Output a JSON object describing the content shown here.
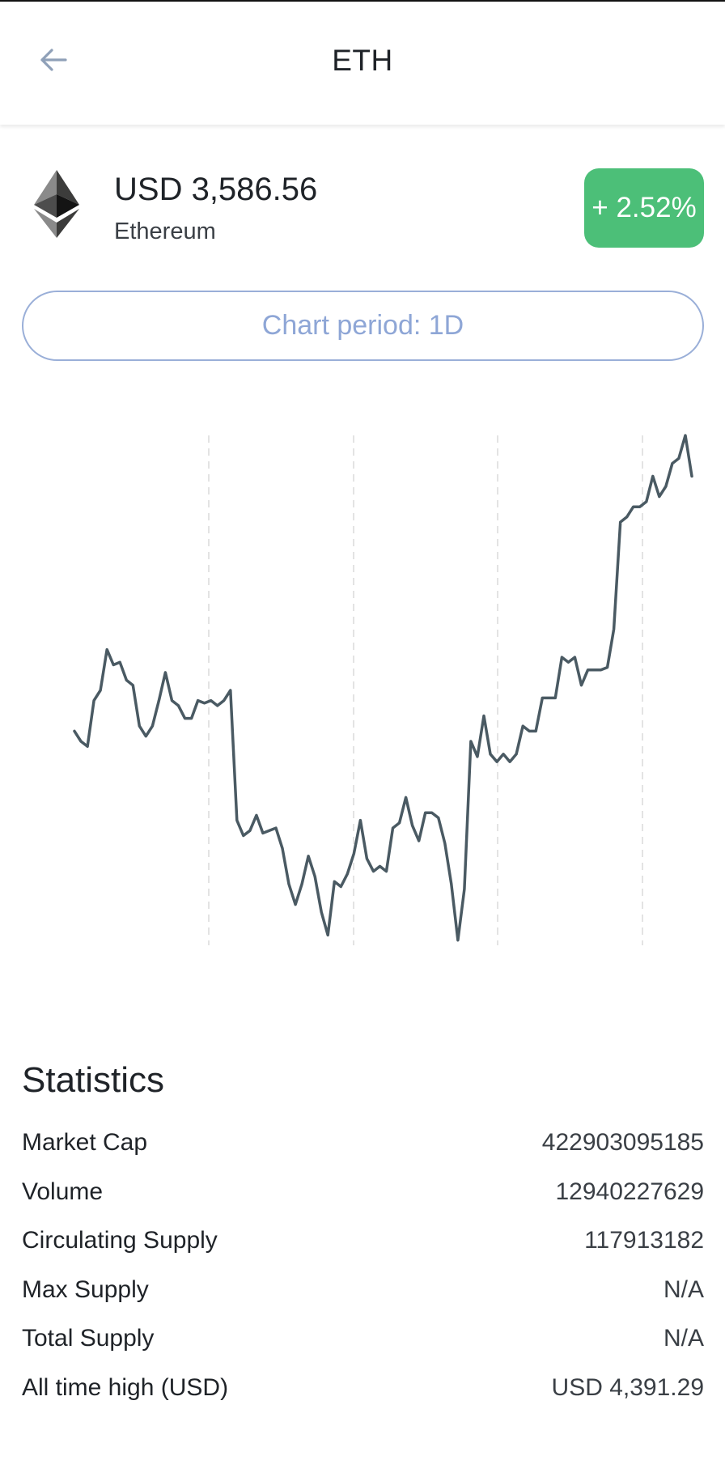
{
  "header": {
    "title": "ETH",
    "back_icon": "arrow-left-icon"
  },
  "coin": {
    "price": "USD 3,586.56",
    "name": "Ethereum",
    "change": "+ 2.52%",
    "logo_icon": "ethereum-logo-icon"
  },
  "period_button": {
    "label": "Chart period: 1D"
  },
  "chart_data": {
    "type": "line",
    "grid": "vertical dashed",
    "values": [
      0.42,
      0.4,
      0.39,
      0.48,
      0.5,
      0.58,
      0.55,
      0.555,
      0.52,
      0.51,
      0.43,
      0.41,
      0.43,
      0.48,
      0.535,
      0.48,
      0.47,
      0.445,
      0.445,
      0.48,
      0.475,
      0.48,
      0.47,
      0.48,
      0.5,
      0.245,
      0.215,
      0.225,
      0.255,
      0.22,
      0.225,
      0.23,
      0.19,
      0.12,
      0.08,
      0.12,
      0.175,
      0.135,
      0.065,
      0.02,
      0.125,
      0.115,
      0.14,
      0.18,
      0.245,
      0.17,
      0.145,
      0.155,
      0.145,
      0.23,
      0.24,
      0.29,
      0.235,
      0.205,
      0.26,
      0.26,
      0.25,
      0.2,
      0.12,
      0.01,
      0.11,
      0.4,
      0.37,
      0.45,
      0.375,
      0.36,
      0.375,
      0.36,
      0.375,
      0.43,
      0.42,
      0.42,
      0.485,
      0.485,
      0.485,
      0.565,
      0.555,
      0.565,
      0.51,
      0.54,
      0.54,
      0.54,
      0.545,
      0.62,
      0.83,
      0.84,
      0.86,
      0.86,
      0.87,
      0.92,
      0.88,
      0.9,
      0.945,
      0.955,
      1.0,
      0.92
    ]
  },
  "statistics": {
    "title": "Statistics",
    "rows": [
      {
        "label": "Market Cap",
        "value": "422903095185"
      },
      {
        "label": "Volume",
        "value": "12940227629"
      },
      {
        "label": "Circulating Supply",
        "value": "117913182"
      },
      {
        "label": "Max Supply",
        "value": "N/A"
      },
      {
        "label": "Total Supply",
        "value": "N/A"
      },
      {
        "label": "All time high (USD)",
        "value": "USD 4,391.29"
      }
    ]
  },
  "colors": {
    "accent_green": "#4cbf78",
    "period_border": "#9aafd8",
    "line": "#4a5a63",
    "grid": "#e3e3e3"
  }
}
